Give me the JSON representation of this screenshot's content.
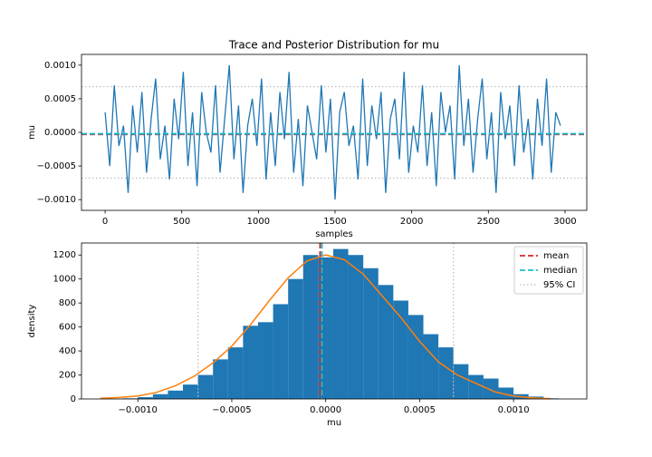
{
  "chart_data": [
    {
      "type": "line",
      "title": "Trace and Posterior Distribution for mu",
      "x_label": "samples",
      "y_label": "mu",
      "xlim": [
        -154,
        3142
      ],
      "xticks": [
        0,
        500,
        1000,
        1500,
        2000,
        2500,
        3000
      ],
      "ylim": [
        -0.00116,
        0.00116
      ],
      "yticks": [
        {
          "value": -0.001,
          "label": "−0.0010"
        },
        {
          "value": -0.0005,
          "label": "−0.0005"
        },
        {
          "value": 0,
          "label": "0.0000"
        },
        {
          "value": 0.0005,
          "label": "0.0005"
        },
        {
          "value": 0.001,
          "label": "0.0010"
        }
      ],
      "series": [
        {
          "color": "#1f77b4",
          "x": [
            0,
            30,
            60,
            90,
            120,
            150,
            180,
            210,
            240,
            270,
            300,
            330,
            360,
            390,
            420,
            450,
            480,
            510,
            540,
            570,
            600,
            630,
            660,
            690,
            720,
            750,
            780,
            810,
            840,
            870,
            900,
            930,
            960,
            990,
            1020,
            1050,
            1080,
            1110,
            1140,
            1170,
            1200,
            1230,
            1260,
            1290,
            1320,
            1350,
            1380,
            1410,
            1440,
            1470,
            1500,
            1530,
            1560,
            1590,
            1620,
            1650,
            1680,
            1710,
            1740,
            1770,
            1800,
            1830,
            1860,
            1890,
            1920,
            1950,
            1980,
            2010,
            2040,
            2070,
            2100,
            2130,
            2160,
            2190,
            2220,
            2250,
            2280,
            2310,
            2340,
            2370,
            2400,
            2430,
            2460,
            2490,
            2520,
            2550,
            2580,
            2610,
            2640,
            2670,
            2700,
            2730,
            2760,
            2790,
            2820,
            2850,
            2880,
            2910,
            2940,
            2970
          ],
          "values": [
            0.0003,
            -0.0005,
            0.0007,
            -0.0002,
            0.0001,
            -0.0009,
            0.0004,
            -0.0003,
            0.0006,
            -0.0006,
            0.0002,
            0.0008,
            -0.0004,
            0.0001,
            -0.0007,
            0.0005,
            -0.0001,
            0.0009,
            -0.0005,
            0.0003,
            -0.0008,
            0.0006,
            0.0,
            -0.0003,
            0.0007,
            -0.0006,
            0.0002,
            0.001,
            -0.0004,
            0.0004,
            -0.0009,
            0.0001,
            0.0005,
            -0.0002,
            0.0008,
            -0.0007,
            0.0003,
            -0.0005,
            0.0006,
            -0.0001,
            0.0009,
            -0.0006,
            0.0002,
            -0.0008,
            0.0004,
            0.0,
            -0.0004,
            0.0007,
            -0.0003,
            0.0005,
            -0.001,
            0.0003,
            0.0006,
            -0.0002,
            0.0001,
            -0.0007,
            0.0008,
            -0.0005,
            0.0004,
            -0.0001,
            0.0006,
            -0.0009,
            0.0002,
            0.0005,
            -0.0004,
            0.0009,
            -0.0006,
            0.0001,
            -0.0003,
            0.0007,
            -0.0005,
            0.0003,
            -0.0008,
            0.0006,
            0.0,
            0.0004,
            -0.0007,
            0.001,
            -0.0002,
            0.0005,
            -0.0006,
            0.0002,
            0.0008,
            -0.0004,
            0.0003,
            -0.0009,
            0.0006,
            -0.0001,
            0.0004,
            -0.0005,
            0.0007,
            -0.0003,
            0.0002,
            -0.0007,
            0.0005,
            -0.0002,
            0.0008,
            -0.0006,
            0.0003,
            0.0001
          ]
        }
      ],
      "hlines": [
        {
          "value": -3e-05,
          "color": "#d62728",
          "style": "dashed"
        },
        {
          "value": -2e-05,
          "color": "#17becf",
          "style": "dashed"
        },
        {
          "value": -0.00068,
          "color": "#bbbbbb",
          "style": "dotted"
        },
        {
          "value": 0.00068,
          "color": "#bbbbbb",
          "style": "dotted"
        }
      ]
    },
    {
      "type": "histogram",
      "x_label": "mu",
      "y_label": "density",
      "xlim": [
        -0.0013,
        0.00139
      ],
      "xticks": [
        {
          "value": -0.001,
          "label": "−0.0010"
        },
        {
          "value": -0.0005,
          "label": "−0.0005"
        },
        {
          "value": 0,
          "label": "0.0000"
        },
        {
          "value": 0.0005,
          "label": "0.0005"
        },
        {
          "value": 0.001,
          "label": "0.0010"
        }
      ],
      "ylim": [
        0,
        1300
      ],
      "yticks": [
        0,
        200,
        400,
        600,
        800,
        1000,
        1200
      ],
      "color": "#1f77b4",
      "bins": [
        -0.00108,
        -0.001,
        -0.00092,
        -0.00084,
        -0.00076,
        -0.00068,
        -0.0006,
        -0.00052,
        -0.00044,
        -0.00036,
        -0.00028,
        -0.0002,
        -0.00012,
        -4e-05,
        4e-05,
        0.00012,
        0.0002,
        0.00028,
        0.00036,
        0.00044,
        0.00052,
        0.0006,
        0.00068,
        0.00076,
        0.00084,
        0.00092,
        0.001,
        0.00108,
        0.00116,
        0.00124
      ],
      "counts": [
        5,
        15,
        40,
        70,
        120,
        200,
        330,
        430,
        610,
        640,
        790,
        1000,
        1200,
        1180,
        1250,
        1200,
        1090,
        950,
        820,
        700,
        540,
        430,
        290,
        200,
        170,
        95,
        40,
        20,
        5
      ],
      "kde": {
        "color": "#ff7f0e",
        "x": [
          -0.0012,
          -0.0011,
          -0.001,
          -0.0009,
          -0.0008,
          -0.0007,
          -0.0006,
          -0.0005,
          -0.0004,
          -0.0003,
          -0.0002,
          -0.0001,
          0,
          0.0001,
          0.0002,
          0.0003,
          0.0004,
          0.0005,
          0.0006,
          0.0007,
          0.0008,
          0.0009,
          0.001,
          0.0011,
          0.0012
        ],
        "values": [
          5,
          12,
          25,
          55,
          110,
          190,
          300,
          440,
          620,
          820,
          1010,
          1150,
          1200,
          1160,
          1040,
          860,
          680,
          480,
          310,
          200,
          130,
          60,
          25,
          8,
          3
        ]
      },
      "vlines": [
        {
          "name": "mean",
          "value": -3e-05,
          "color": "#d62728",
          "style": "dashed"
        },
        {
          "name": "median",
          "value": -2e-05,
          "color": "#17becf",
          "style": "dashed"
        },
        {
          "name": "95% CI",
          "values": [
            -0.00068,
            0.00068
          ],
          "color": "#bbbbbb",
          "style": "dotted"
        }
      ],
      "legend": "upper right"
    }
  ]
}
